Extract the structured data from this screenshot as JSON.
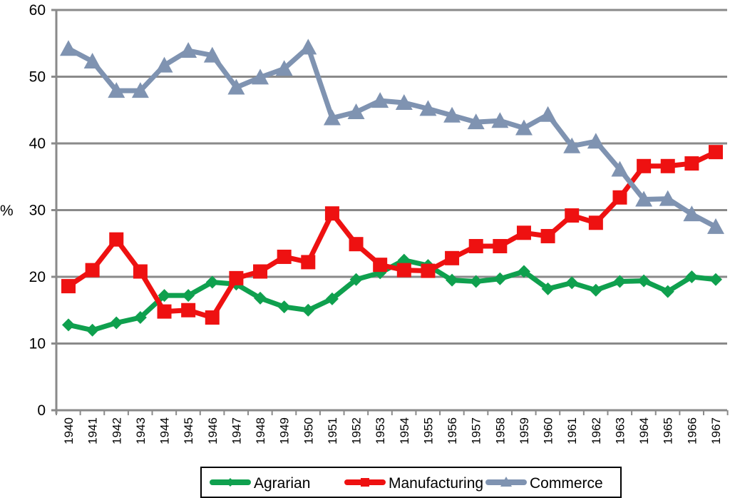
{
  "chart_data": {
    "type": "line",
    "title": "",
    "xlabel": "",
    "ylabel": "%",
    "ylim": [
      0,
      60
    ],
    "yticks": [
      0,
      10,
      20,
      30,
      40,
      50,
      60
    ],
    "grid": true,
    "legend_position": "bottom",
    "x": [
      "1940",
      "1941",
      "1942",
      "1943",
      "1944",
      "1945",
      "1946",
      "1947",
      "1948",
      "1949",
      "1950",
      "1951",
      "1952",
      "1953",
      "1954",
      "1955",
      "1956",
      "1957",
      "1958",
      "1959",
      "1960",
      "1961",
      "1962",
      "1963",
      "1964",
      "1965",
      "1966",
      "1967"
    ],
    "series": [
      {
        "name": "Agrarian",
        "color": "#0fa04e",
        "marker": "diamond",
        "values": [
          12.8,
          12.0,
          13.1,
          13.9,
          17.2,
          17.2,
          19.2,
          18.9,
          16.8,
          15.5,
          15.0,
          16.7,
          19.6,
          20.6,
          22.5,
          21.7,
          19.5,
          19.3,
          19.7,
          20.8,
          18.2,
          19.1,
          18.0,
          19.3,
          19.4,
          17.8,
          20.0,
          19.6
        ]
      },
      {
        "name": "Manufacturing",
        "color": "#ee1111",
        "marker": "square",
        "values": [
          18.6,
          21.0,
          25.6,
          20.8,
          14.8,
          15.0,
          13.9,
          19.8,
          20.8,
          23.0,
          22.2,
          29.5,
          24.9,
          21.8,
          21.0,
          20.9,
          22.8,
          24.6,
          24.6,
          26.6,
          26.1,
          29.2,
          28.1,
          31.9,
          36.6,
          36.6,
          37.0,
          38.7
        ]
      },
      {
        "name": "Commerce",
        "color": "#7f93b1",
        "marker": "triangle",
        "values": [
          54.2,
          52.3,
          47.9,
          47.9,
          51.7,
          53.9,
          53.2,
          48.4,
          49.9,
          51.2,
          54.4,
          43.8,
          44.7,
          46.4,
          46.1,
          45.2,
          44.2,
          43.2,
          43.4,
          42.3,
          44.3,
          39.6,
          40.3,
          36.1,
          31.6,
          31.7,
          29.4,
          27.5
        ]
      }
    ]
  }
}
